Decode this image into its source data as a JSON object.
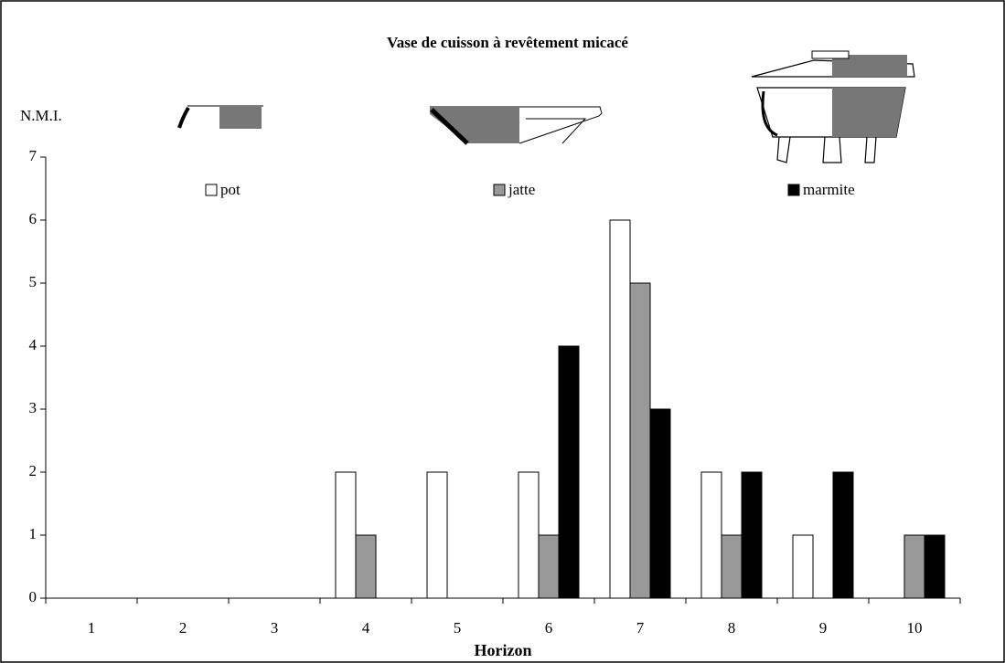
{
  "chart_data": {
    "type": "bar",
    "title": "Vase de cuisson à revêtement micacé",
    "y_label": "N.M.I.",
    "x_label": "Horizon",
    "categories": [
      "1",
      "2",
      "3",
      "4",
      "5",
      "6",
      "7",
      "8",
      "9",
      "10"
    ],
    "series": [
      {
        "name": "pot",
        "color": "#ffffff",
        "values": [
          0,
          0,
          0,
          2,
          2,
          2,
          6,
          2,
          1,
          0
        ]
      },
      {
        "name": "jatte",
        "color": "#999999",
        "values": [
          0,
          0,
          0,
          1,
          0,
          1,
          5,
          1,
          0,
          1
        ]
      },
      {
        "name": "marmite",
        "color": "#000000",
        "values": [
          0,
          0,
          0,
          0,
          0,
          4,
          3,
          2,
          2,
          1
        ]
      }
    ],
    "ylim": [
      0,
      7
    ],
    "yticks": [
      0,
      1,
      2,
      3,
      4,
      5,
      6,
      7
    ],
    "grid": false
  }
}
